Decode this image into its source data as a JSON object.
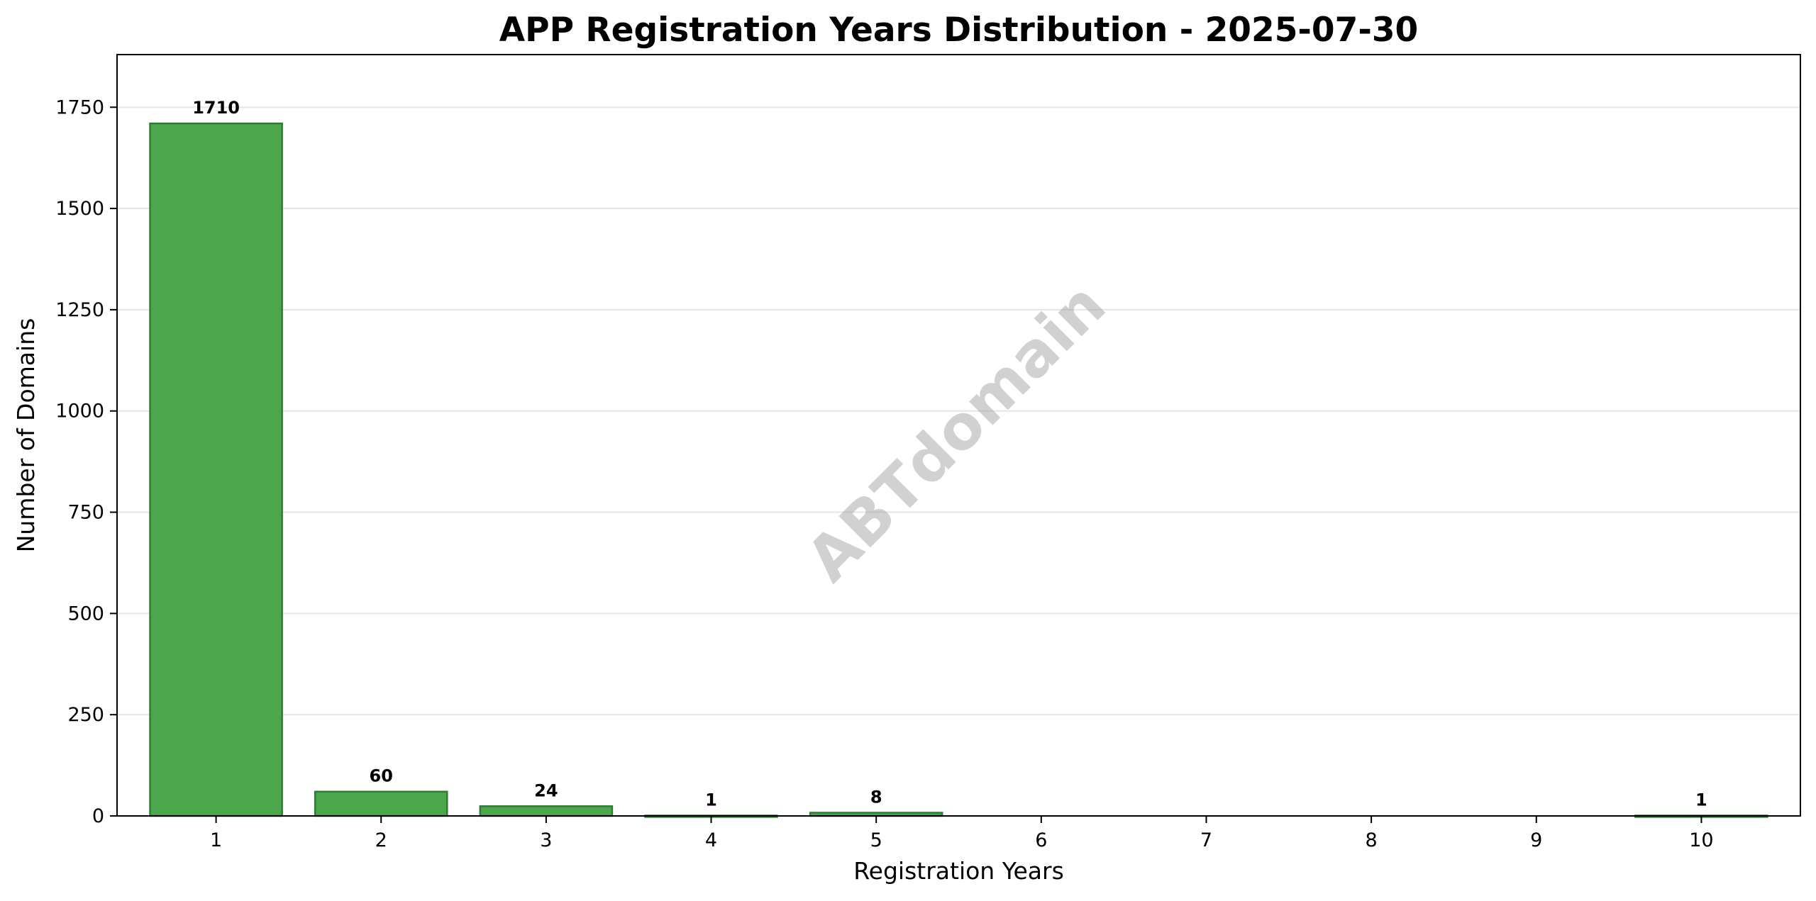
{
  "chart_data": {
    "type": "bar",
    "title": "APP Registration Years Distribution - 2025-07-30",
    "xlabel": "Registration Years",
    "ylabel": "Number of Domains",
    "categories": [
      "1",
      "2",
      "3",
      "4",
      "5",
      "6",
      "7",
      "8",
      "9",
      "10"
    ],
    "values": [
      1710,
      60,
      24,
      1,
      8,
      0,
      0,
      0,
      0,
      1
    ],
    "data_labels": [
      "1710",
      "60",
      "24",
      "1",
      "8",
      "",
      "",
      "",
      "",
      "1"
    ],
    "ylim": [
      0,
      1880
    ],
    "yticks": [
      0,
      250,
      500,
      750,
      1000,
      1250,
      1500,
      1750
    ],
    "ytick_labels": [
      "0",
      "250",
      "500",
      "750",
      "1000",
      "1250",
      "1500",
      "1750"
    ],
    "grid": "y-major",
    "legend": "none",
    "watermark": "ABTdomain",
    "colors": {
      "bar_fill": "#4ca64c",
      "bar_edge": "#2e7d32",
      "grid": "#e6e6e6",
      "watermark": "#999999"
    }
  }
}
